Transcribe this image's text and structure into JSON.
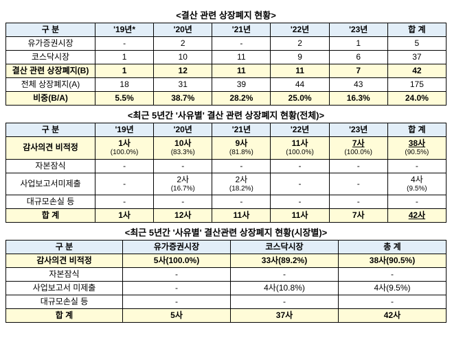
{
  "table1": {
    "title": "<결산 관련 상장폐지 현황>",
    "headers": [
      "구 분",
      "'19년*",
      "'20년",
      "'21년",
      "'22년",
      "'23년",
      "합 계"
    ],
    "rows": [
      {
        "label": "유가증권시장",
        "cells": [
          "-",
          "2",
          "-",
          "2",
          "1",
          "5"
        ],
        "hl": false
      },
      {
        "label": "코스닥시장",
        "cells": [
          "1",
          "10",
          "11",
          "9",
          "6",
          "37"
        ],
        "hl": false
      },
      {
        "label": "결산 관련 상장폐지(B)",
        "cells": [
          "1",
          "12",
          "11",
          "11",
          "7",
          "42"
        ],
        "hl": true
      },
      {
        "label": "전체 상장폐지(A)",
        "cells": [
          "18",
          "31",
          "39",
          "44",
          "43",
          "175"
        ],
        "hl": false
      },
      {
        "label": "비중(B/A)",
        "cells": [
          "5.5%",
          "38.7%",
          "28.2%",
          "25.0%",
          "16.3%",
          "24.0%"
        ],
        "hl": true
      }
    ]
  },
  "table2": {
    "title": "<최근 5년간 '사유별' 결산 관련 상장폐지 현황(전체)>",
    "headers": [
      "구 분",
      "'19년",
      "'20년",
      "'21년",
      "'22년",
      "'23년",
      "합 계"
    ],
    "rows": [
      {
        "label": "감사의견 비적정",
        "hl": true,
        "cells": [
          {
            "main": "1사",
            "sub": "(100.0%)"
          },
          {
            "main": "10사",
            "sub": "(83.3%)"
          },
          {
            "main": "9사",
            "sub": "(81.8%)"
          },
          {
            "main": "11사",
            "sub": "(100.0%)"
          },
          {
            "main": "7사",
            "sub": "(100.0%)",
            "underline": true
          },
          {
            "main": "38사",
            "sub": "(90.5%)",
            "underline": true
          }
        ]
      },
      {
        "label": "자본잠식",
        "hl": false,
        "cells": [
          {
            "main": "-"
          },
          {
            "main": "-"
          },
          {
            "main": "-"
          },
          {
            "main": "-"
          },
          {
            "main": "-"
          },
          {
            "main": "-"
          }
        ]
      },
      {
        "label": "사업보고서미제출",
        "hl": false,
        "cells": [
          {
            "main": "-"
          },
          {
            "main": "2사",
            "sub": "(16.7%)"
          },
          {
            "main": "2사",
            "sub": "(18.2%)"
          },
          {
            "main": "-"
          },
          {
            "main": "-"
          },
          {
            "main": "4사",
            "sub": "(9.5%)"
          }
        ]
      },
      {
        "label": "대규모손실 등",
        "hl": false,
        "cells": [
          {
            "main": "-"
          },
          {
            "main": "-"
          },
          {
            "main": "-"
          },
          {
            "main": "-"
          },
          {
            "main": "-"
          },
          {
            "main": "-"
          }
        ]
      },
      {
        "label": "합 계",
        "hl": true,
        "cells": [
          {
            "main": "1사"
          },
          {
            "main": "12사"
          },
          {
            "main": "11사"
          },
          {
            "main": "11사"
          },
          {
            "main": "7사"
          },
          {
            "main": "42사",
            "underline": true
          }
        ]
      }
    ]
  },
  "table3": {
    "title": "<최근 5년간 '사유별' 결산관련 상장폐지 현황(시장별)>",
    "headers": [
      "구 분",
      "유가증권시장",
      "코스닥시장",
      "총 계"
    ],
    "rows": [
      {
        "label": "감사의견 비적정",
        "cells": [
          "5사(100.0%)",
          "33사(89.2%)",
          "38사(90.5%)"
        ],
        "hl": true
      },
      {
        "label": "자본잠식",
        "cells": [
          "-",
          "-",
          "-"
        ],
        "hl": false
      },
      {
        "label": "사업보고서 미제출",
        "cells": [
          "-",
          "4사(10.8%)",
          "4사(9.5%)"
        ],
        "hl": false
      },
      {
        "label": "대규모손실 등",
        "cells": [
          "-",
          "-",
          "-"
        ],
        "hl": false
      },
      {
        "label": "합 계",
        "cells": [
          "5사",
          "37사",
          "42사"
        ],
        "hl": true
      }
    ]
  }
}
